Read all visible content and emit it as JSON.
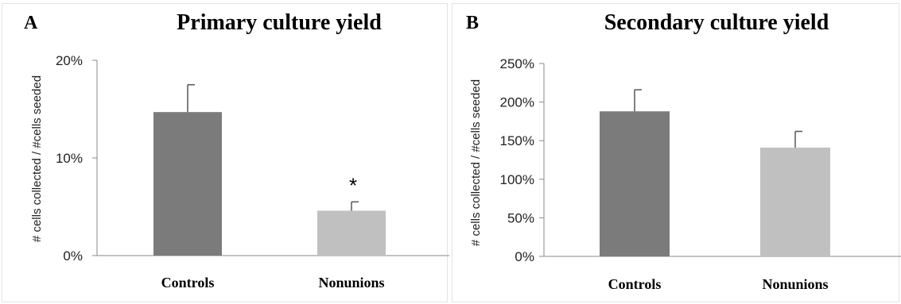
{
  "chart_data": [
    {
      "panel_letter": "A",
      "type": "bar",
      "title": "Primary culture yield",
      "ylabel": "# cells collected /  #cells seeded",
      "xlabel": "",
      "categories": [
        "Controls",
        "Nonunions"
      ],
      "values": [
        14.7,
        4.6
      ],
      "errors": [
        2.8,
        0.9
      ],
      "colors": [
        "#7b7b7b",
        "#c0c0c0"
      ],
      "ylim": [
        0,
        20
      ],
      "yticks": [
        0,
        10,
        20
      ],
      "ytick_labels": [
        "0%",
        "10%",
        "20%"
      ],
      "annotations": [
        {
          "category": "Nonunions",
          "text": "*"
        }
      ],
      "grid": false
    },
    {
      "panel_letter": "B",
      "type": "bar",
      "title": "Secondary culture yield",
      "ylabel": "# cells collected /  #cells seeded",
      "xlabel": "",
      "categories": [
        "Controls",
        "Nonunions"
      ],
      "values": [
        188,
        141
      ],
      "errors": [
        28,
        21
      ],
      "colors": [
        "#7b7b7b",
        "#c0c0c0"
      ],
      "ylim": [
        0,
        250
      ],
      "yticks": [
        0,
        50,
        100,
        150,
        200,
        250
      ],
      "ytick_labels": [
        "0%",
        "50%",
        "100%",
        "150%",
        "200%",
        "250%"
      ],
      "annotations": [],
      "grid": false
    }
  ]
}
